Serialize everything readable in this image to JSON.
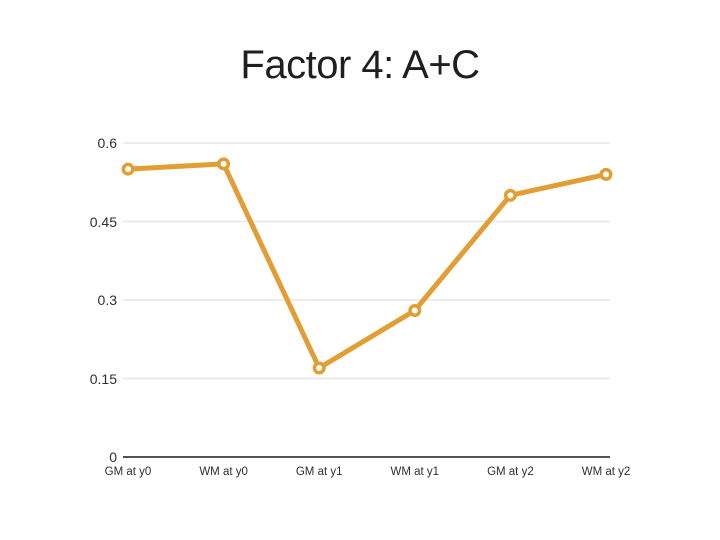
{
  "page": {
    "background": "#FFFFFF"
  },
  "chart_data": {
    "type": "line",
    "title": "Factor 4: A+C",
    "categories": [
      "GM at y0",
      "WM at y0",
      "GM at y1",
      "WM at y1",
      "GM at y2",
      "WM at y2"
    ],
    "series": [
      {
        "name": "Factor 4: A+C",
        "values": [
          0.55,
          0.56,
          0.17,
          0.28,
          0.5,
          0.54
        ]
      }
    ],
    "xlabel": "",
    "ylabel": "",
    "ylim": [
      0,
      0.6
    ],
    "yticks": [
      0,
      0.15,
      0.3,
      0.45,
      0.6
    ],
    "ytick_labels_desc": [
      "0.6",
      "0.45",
      "0.3",
      "0.15",
      "0"
    ],
    "grid": "horizontal",
    "legend": "none",
    "marker_style": "open-circle",
    "colors": {
      "line": "#E29E35",
      "marker_fill": "#FFFFFF",
      "gridline": "#E7E7E7",
      "axis": "#3A3A3A",
      "tick_label": "#2F2F2F",
      "title": "#1F1F1F"
    }
  }
}
